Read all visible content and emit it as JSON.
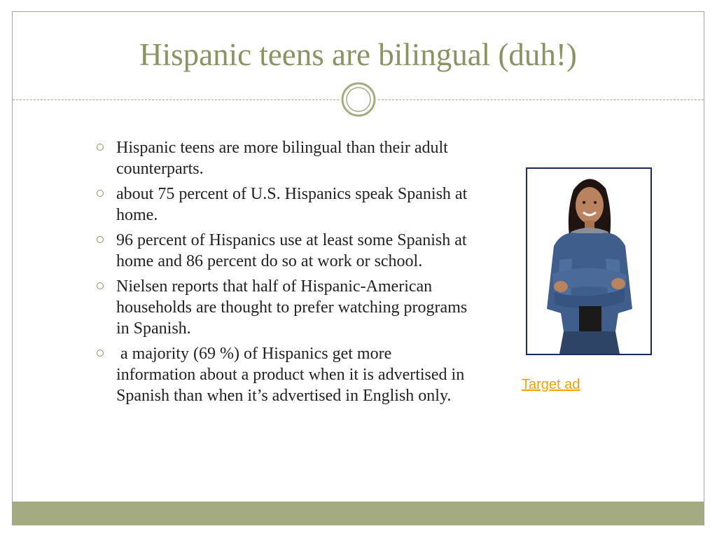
{
  "slide": {
    "title": "Hispanic teens are bilingual (duh!)",
    "bullets": [
      "Hispanic teens are more bilingual than their adult counterparts.",
      "about 75 percent of U.S. Hispanics speak Spanish at home.",
      "96 percent of Hispanics use at least some Spanish at  home and 86 percent do so at work or school.",
      "Nielsen reports that half of Hispanic-American households are thought to prefer watching programs in Spanish.",
      " a majority (69 %) of Hispanics get more information about a product when it is advertised in Spanish than when it’s advertised in English only."
    ],
    "link_label": "Target ad"
  },
  "colors": {
    "title": "#8b9264",
    "accent": "#a5ab81",
    "link": "#f1a400",
    "photo_border": "#1c2a63"
  },
  "icons": {
    "ornament": "double-circle-ornament-icon",
    "bullet": "hollow-circle-bullet-icon"
  }
}
